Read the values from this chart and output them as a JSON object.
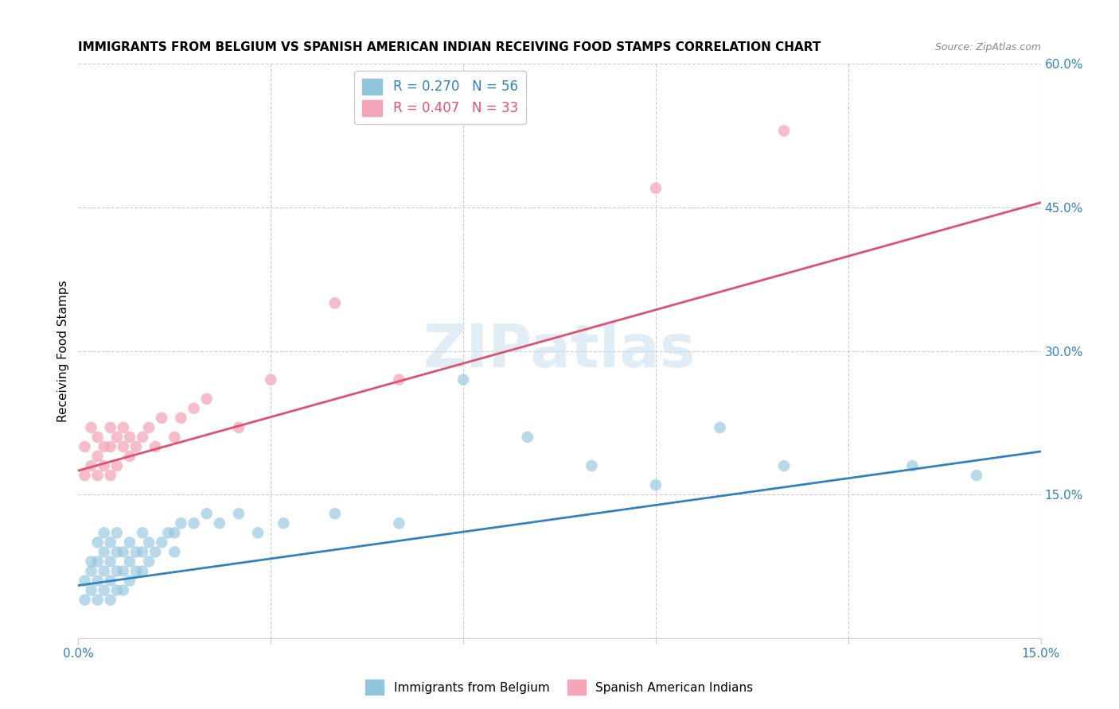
{
  "title": "IMMIGRANTS FROM BELGIUM VS SPANISH AMERICAN INDIAN RECEIVING FOOD STAMPS CORRELATION CHART",
  "source": "Source: ZipAtlas.com",
  "ylabel": "Receiving Food Stamps",
  "xlim": [
    0.0,
    0.15
  ],
  "ylim": [
    0.0,
    0.6
  ],
  "xtick_positions": [
    0.0,
    0.03,
    0.06,
    0.09,
    0.12,
    0.15
  ],
  "xtick_labels": [
    "0.0%",
    "",
    "",
    "",
    "",
    "15.0%"
  ],
  "ytick_positions": [
    0.15,
    0.3,
    0.45,
    0.6
  ],
  "ytick_labels_right": [
    "15.0%",
    "30.0%",
    "45.0%",
    "60.0%"
  ],
  "legend_r1": "R = 0.270",
  "legend_n1": "N = 56",
  "legend_r2": "R = 0.407",
  "legend_n2": "N = 33",
  "legend_label1": "Immigrants from Belgium",
  "legend_label2": "Spanish American Indians",
  "blue_color": "#92c5de",
  "pink_color": "#f4a6b8",
  "blue_line_color": "#3182bd",
  "pink_line_color": "#e05070",
  "watermark": "ZIPatlas",
  "blue_scatter_x": [
    0.001,
    0.001,
    0.002,
    0.002,
    0.002,
    0.003,
    0.003,
    0.003,
    0.003,
    0.004,
    0.004,
    0.004,
    0.004,
    0.005,
    0.005,
    0.005,
    0.005,
    0.006,
    0.006,
    0.006,
    0.006,
    0.007,
    0.007,
    0.007,
    0.008,
    0.008,
    0.008,
    0.009,
    0.009,
    0.01,
    0.01,
    0.01,
    0.011,
    0.011,
    0.012,
    0.013,
    0.014,
    0.015,
    0.015,
    0.016,
    0.018,
    0.02,
    0.022,
    0.025,
    0.028,
    0.032,
    0.04,
    0.05,
    0.06,
    0.07,
    0.08,
    0.09,
    0.1,
    0.11,
    0.13,
    0.14
  ],
  "blue_scatter_y": [
    0.04,
    0.06,
    0.05,
    0.07,
    0.08,
    0.04,
    0.06,
    0.08,
    0.1,
    0.05,
    0.07,
    0.09,
    0.11,
    0.04,
    0.06,
    0.08,
    0.1,
    0.05,
    0.07,
    0.09,
    0.11,
    0.05,
    0.07,
    0.09,
    0.06,
    0.08,
    0.1,
    0.07,
    0.09,
    0.07,
    0.09,
    0.11,
    0.08,
    0.1,
    0.09,
    0.1,
    0.11,
    0.09,
    0.11,
    0.12,
    0.12,
    0.13,
    0.12,
    0.13,
    0.11,
    0.12,
    0.13,
    0.12,
    0.27,
    0.21,
    0.18,
    0.16,
    0.22,
    0.18,
    0.18,
    0.17
  ],
  "pink_scatter_x": [
    0.001,
    0.001,
    0.002,
    0.002,
    0.003,
    0.003,
    0.003,
    0.004,
    0.004,
    0.005,
    0.005,
    0.005,
    0.006,
    0.006,
    0.007,
    0.007,
    0.008,
    0.008,
    0.009,
    0.01,
    0.011,
    0.012,
    0.013,
    0.015,
    0.016,
    0.018,
    0.02,
    0.025,
    0.03,
    0.04,
    0.05,
    0.09,
    0.11
  ],
  "pink_scatter_y": [
    0.17,
    0.2,
    0.18,
    0.22,
    0.17,
    0.19,
    0.21,
    0.18,
    0.2,
    0.17,
    0.2,
    0.22,
    0.18,
    0.21,
    0.2,
    0.22,
    0.19,
    0.21,
    0.2,
    0.21,
    0.22,
    0.2,
    0.23,
    0.21,
    0.23,
    0.24,
    0.25,
    0.22,
    0.27,
    0.35,
    0.27,
    0.47,
    0.53
  ],
  "blue_line_x0": 0.0,
  "blue_line_y0": 0.055,
  "blue_line_x1": 0.15,
  "blue_line_y1": 0.195,
  "pink_line_x0": 0.0,
  "pink_line_y0": 0.175,
  "pink_line_x1": 0.15,
  "pink_line_y1": 0.455
}
